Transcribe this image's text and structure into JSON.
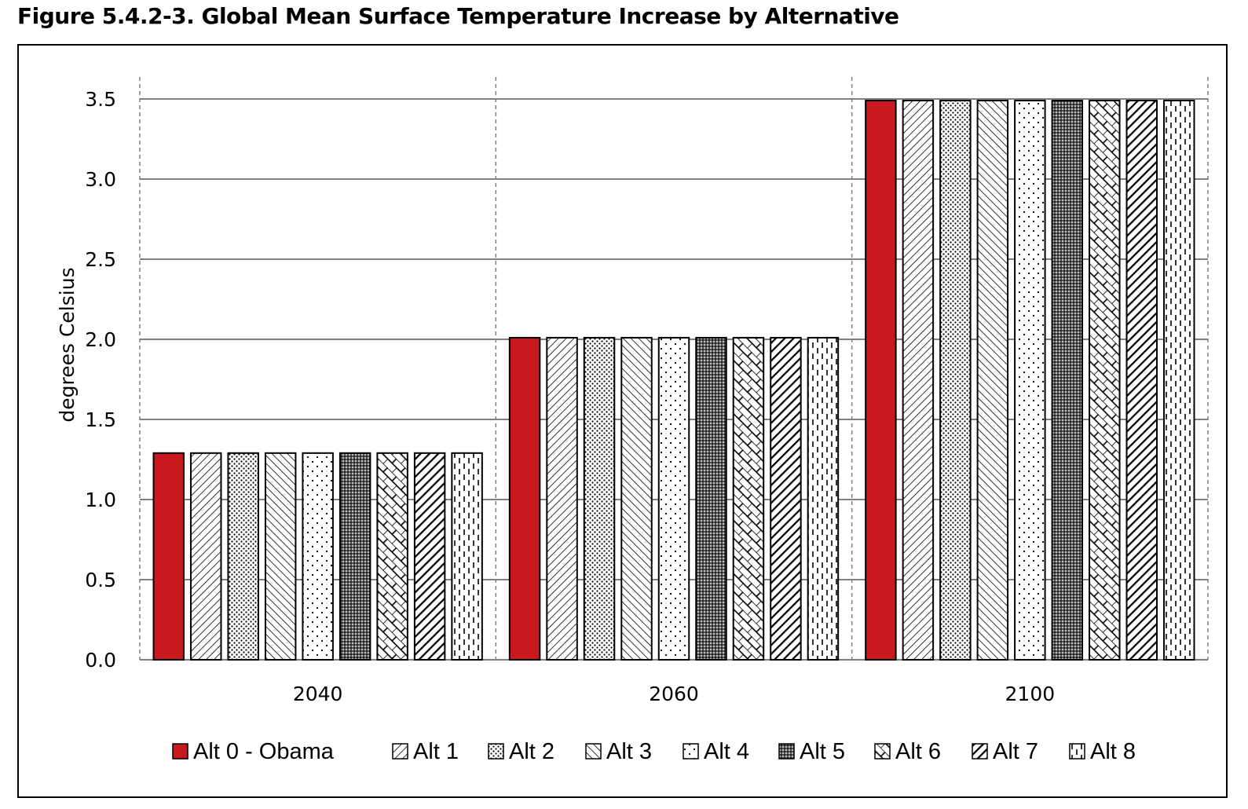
{
  "figure_title": "Figure 5.4.2-3.   Global Mean Surface Temperature Increase by Alternative",
  "colors": {
    "obama": "#c8191e",
    "bar_stroke": "#000000",
    "grid": "#808080"
  },
  "chart_data": {
    "type": "bar",
    "title": "Figure 5.4.2-3.   Global Mean Surface Temperature Increase by Alternative",
    "xlabel": "",
    "ylabel": "degrees Celsius",
    "ylim": [
      0,
      3.5
    ],
    "yticks": [
      "0.0",
      "0.5",
      "1.0",
      "1.5",
      "2.0",
      "2.5",
      "3.0",
      "3.5"
    ],
    "categories": [
      "2040",
      "2060",
      "2100"
    ],
    "grid": true,
    "legend_position": "bottom",
    "series": [
      {
        "name": "Alt 0 - Obama",
        "pattern": "solid-red",
        "values": [
          1.29,
          2.01,
          3.49
        ]
      },
      {
        "name": "Alt 1",
        "pattern": "diagonal-fine",
        "values": [
          1.29,
          2.01,
          3.49
        ]
      },
      {
        "name": "Alt 2",
        "pattern": "dots-dense",
        "values": [
          1.29,
          2.01,
          3.49
        ]
      },
      {
        "name": "Alt 3",
        "pattern": "backdiagonal",
        "values": [
          1.29,
          2.01,
          3.49
        ]
      },
      {
        "name": "Alt 4",
        "pattern": "dots-sparse",
        "values": [
          1.29,
          2.01,
          3.49
        ]
      },
      {
        "name": "Alt 5",
        "pattern": "checker-dark",
        "values": [
          1.29,
          2.01,
          3.49
        ]
      },
      {
        "name": "Alt 6",
        "pattern": "lattice",
        "values": [
          1.29,
          2.01,
          3.49
        ]
      },
      {
        "name": "Alt 7",
        "pattern": "diagonal-bold",
        "values": [
          1.29,
          2.01,
          3.49
        ]
      },
      {
        "name": "Alt 8",
        "pattern": "dashed-vertical",
        "values": [
          1.29,
          2.01,
          3.49
        ]
      }
    ]
  }
}
